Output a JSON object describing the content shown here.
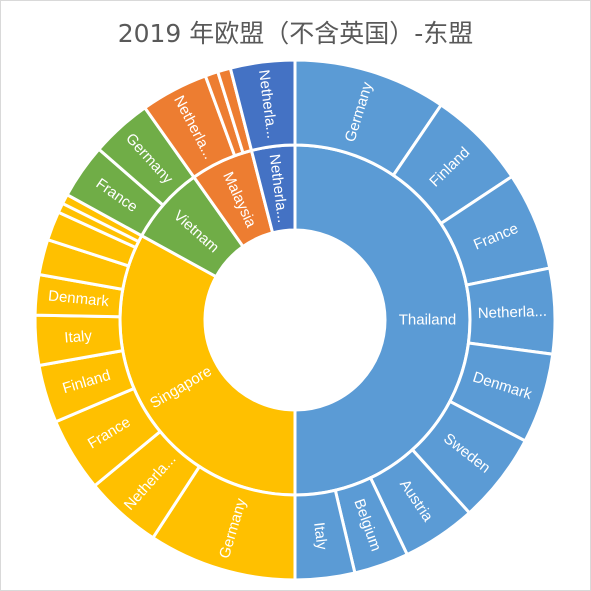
{
  "chart_data": {
    "type": "sunburst",
    "title": "2019 年欧盟（不含英国）-东盟",
    "colors": {
      "Thailand": "#5b9bd5",
      "Singapore": "#ffc000",
      "Vietnam": "#70ad47",
      "Malaysia": "#ed7d31",
      "Netherla...": "#4472c4"
    },
    "inner_ring": [
      {
        "label": "Thailand",
        "value": 50.0
      },
      {
        "label": "Singapore",
        "value": 33.0
      },
      {
        "label": "Vietnam",
        "value": 7.2
      },
      {
        "label": "Malaysia",
        "value": 5.8
      },
      {
        "label": "Netherla...",
        "value": 4.0
      }
    ],
    "outer_ring": [
      {
        "parent": "Thailand",
        "label": "Germany",
        "value": 9.5
      },
      {
        "parent": "Thailand",
        "label": "Finland",
        "value": 6.2
      },
      {
        "parent": "Thailand",
        "label": "France",
        "value": 6.1
      },
      {
        "parent": "Thailand",
        "label": "Netherla...",
        "value": 5.3
      },
      {
        "parent": "Thailand",
        "label": "Denmark",
        "value": 5.6
      },
      {
        "parent": "Thailand",
        "label": "Sweden",
        "value": 5.6
      },
      {
        "parent": "Thailand",
        "label": "Austria",
        "value": 4.6
      },
      {
        "parent": "Thailand",
        "label": "Belgium",
        "value": 3.4
      },
      {
        "parent": "Thailand",
        "label": "Italy",
        "value": 3.7
      },
      {
        "parent": "Singapore",
        "label": "Germany",
        "value": 9.2
      },
      {
        "parent": "Singapore",
        "label": "Netherla...",
        "value": 4.8
      },
      {
        "parent": "Singapore",
        "label": "France",
        "value": 4.6
      },
      {
        "parent": "Singapore",
        "label": "Finland",
        "value": 3.6
      },
      {
        "parent": "Singapore",
        "label": "Italy",
        "value": 3.1
      },
      {
        "parent": "Singapore",
        "label": "Denmark",
        "value": 2.5
      },
      {
        "parent": "Singapore",
        "label": "",
        "value": 2.2
      },
      {
        "parent": "Singapore",
        "label": "",
        "value": 1.8
      },
      {
        "parent": "Singapore",
        "label": "",
        "value": 0.6
      },
      {
        "parent": "Singapore",
        "label": "",
        "value": 0.6
      },
      {
        "parent": "Vietnam",
        "label": "France",
        "value": 3.4
      },
      {
        "parent": "Vietnam",
        "label": "Germany",
        "value": 3.8
      },
      {
        "parent": "Malaysia",
        "label": "Netherla...",
        "value": 4.2
      },
      {
        "parent": "Malaysia",
        "label": "",
        "value": 0.8
      },
      {
        "parent": "Malaysia",
        "label": "",
        "value": 0.8
      },
      {
        "parent": "Netherla...",
        "label": "Netherla...",
        "value": 4.0
      }
    ]
  }
}
